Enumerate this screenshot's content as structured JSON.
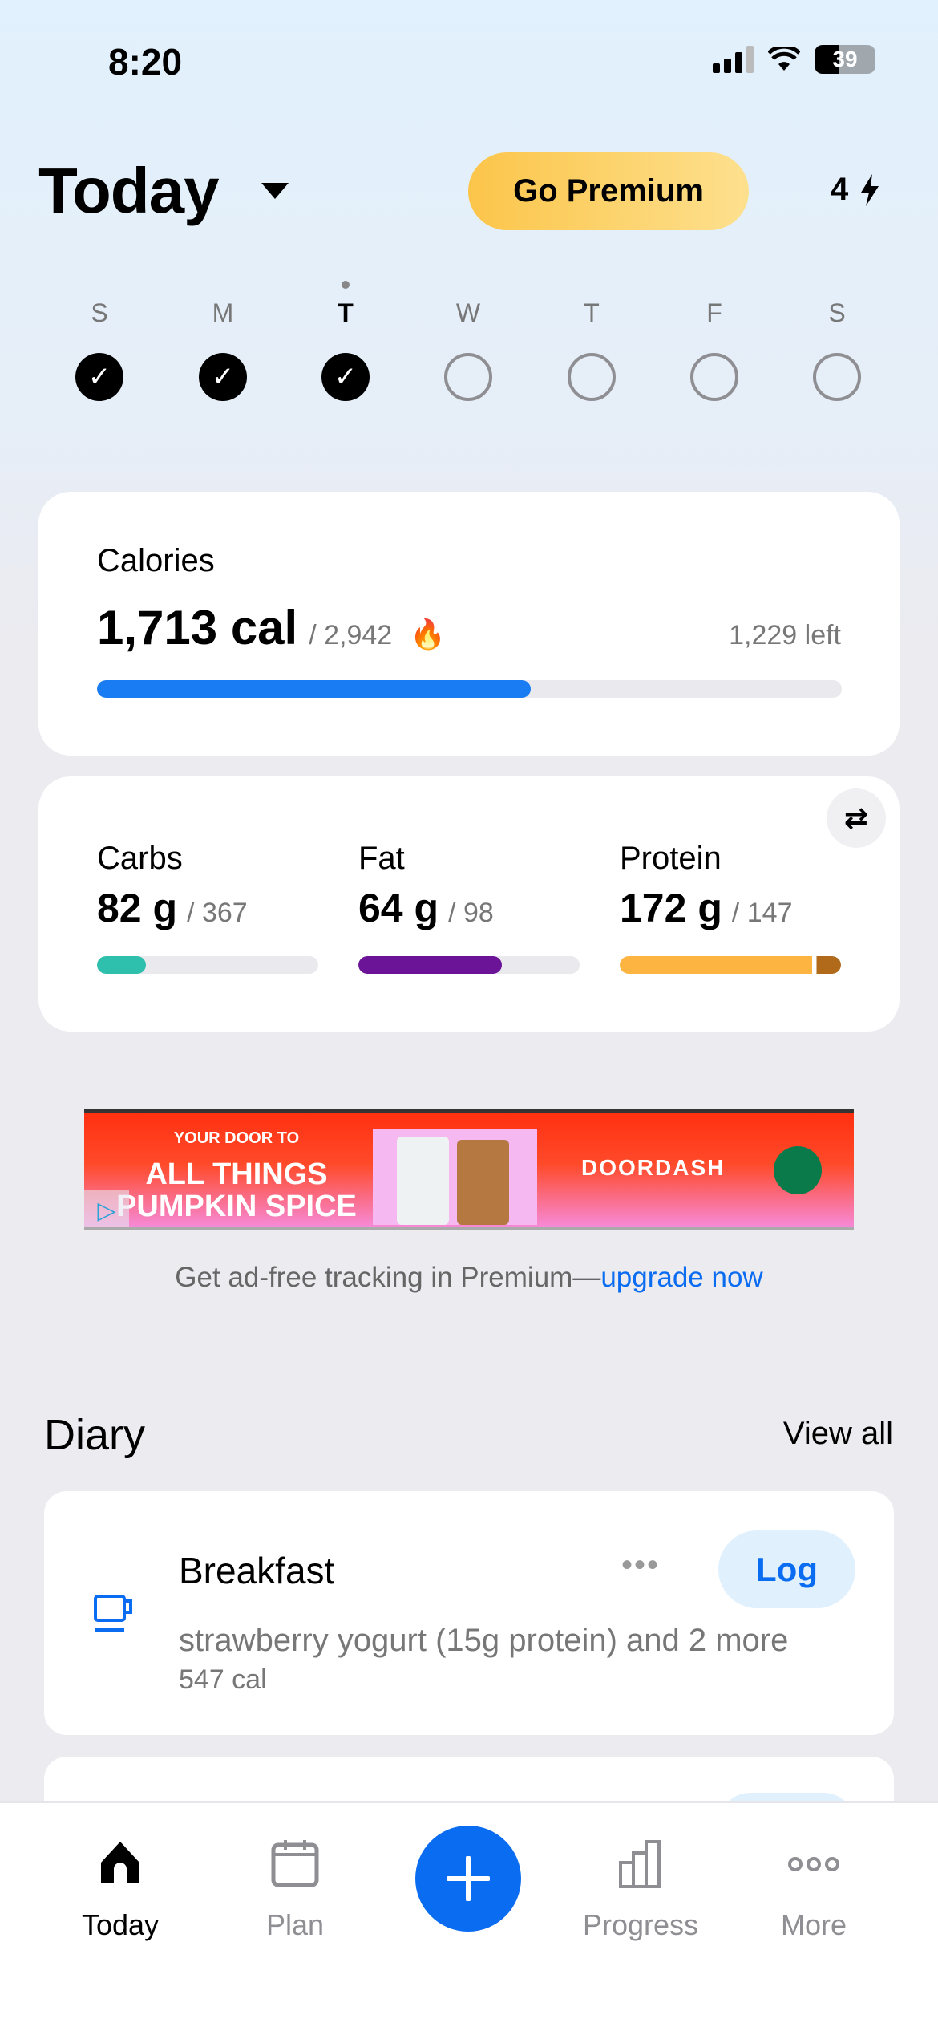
{
  "status": {
    "time": "8:20",
    "battery": "39"
  },
  "header": {
    "title": "Today",
    "premium_label": "Go Premium",
    "streak": "4"
  },
  "week": {
    "days": [
      {
        "letter": "S",
        "done": true
      },
      {
        "letter": "M",
        "done": true
      },
      {
        "letter": "T",
        "done": true,
        "current": true
      },
      {
        "letter": "W",
        "done": false
      },
      {
        "letter": "T",
        "done": false
      },
      {
        "letter": "F",
        "done": false
      },
      {
        "letter": "S",
        "done": false
      }
    ]
  },
  "calories": {
    "label": "Calories",
    "value": "1,713 cal",
    "goal": "/ 2,942",
    "left": "1,229 left",
    "progress": 0.582,
    "color": "#1a7cf2"
  },
  "macros": [
    {
      "label": "Carbs",
      "value": "82 g",
      "goal": "/ 367",
      "progress": 0.22,
      "color": "#2fbfad"
    },
    {
      "label": "Fat",
      "value": "64 g",
      "goal": "/ 98",
      "progress": 0.65,
      "color": "#6b1497"
    },
    {
      "label": "Protein",
      "value": "172 g",
      "goal": "/ 147",
      "progress": 1.0,
      "over": true,
      "color": "#fdb440"
    }
  ],
  "ad": {
    "line1": "YOUR DOOR TO",
    "line2": "ALL THINGS",
    "line3": "PUMPKIN SPICE",
    "brand": "DOORDASH"
  },
  "adfree": {
    "text": "Get ad-free tracking in Premium—",
    "link": "upgrade now"
  },
  "diary": {
    "title": "Diary",
    "view_all": "View all",
    "meals": [
      {
        "name": "Breakfast",
        "desc": "strawberry yogurt (15g protein) and 2 more",
        "cal": "547 cal",
        "log": "Log"
      }
    ]
  },
  "tabs": [
    {
      "label": "Today",
      "active": true
    },
    {
      "label": "Plan"
    },
    {
      "label": "Progress"
    },
    {
      "label": "More"
    }
  ],
  "accent": "#0a6cf0"
}
